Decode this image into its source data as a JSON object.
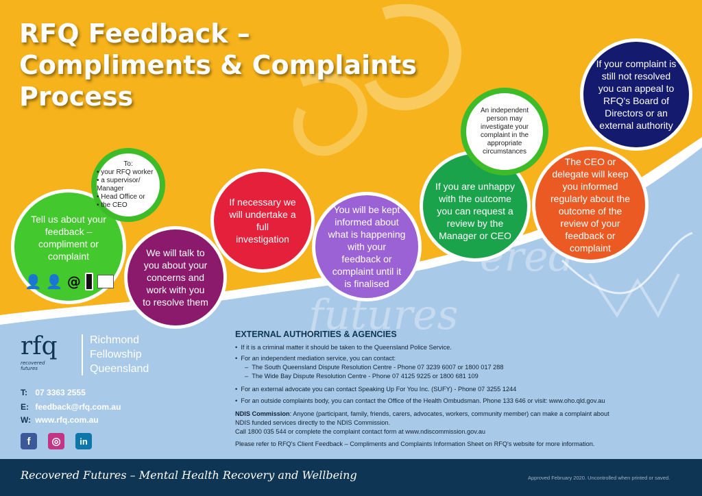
{
  "title": {
    "line1": "RFQ Feedback –",
    "line2": "Compliments & Complaints",
    "line3": "Process"
  },
  "steps": {
    "tell": "Tell us about your feedback – compliment or complaint",
    "to_heading": "To:",
    "to_items": [
      "your RFQ worker",
      "a supervisor/ Manager",
      "Head Office or",
      "the CEO"
    ],
    "talk": "We will talk to you about your concerns and work with you to resolve them",
    "investigate": "If necessary we will undertake a full investigation",
    "informed": "You will be kept informed about what is happening with your feedback or complaint until it is finalised",
    "review": "If you are unhappy with the outcome you can request a review by the Manager or CEO",
    "independent": "An independent person may investigate your complaint in the appropriate circumstances",
    "ceo": "The CEO or delegate will keep you informed regularly about the outcome of the review of your feedback or complaint",
    "appeal": "If your complaint is still not resolved you can appeal to RFQ's Board of Directors or an external authority"
  },
  "watermark": {
    "line1": "ered",
    "line2": "futures"
  },
  "org": {
    "logo_text": "rfq",
    "logo_tagline": "recovered futures",
    "name_line1": "Richmond",
    "name_line2": "Fellowship",
    "name_line3": "Queensland"
  },
  "contact": {
    "phone_label": "T:",
    "phone": "07 3363 2555",
    "email_label": "E:",
    "email": "feedback@rfq.com.au",
    "web_label": "W:",
    "web": "www.rfq.com.au"
  },
  "social": {
    "facebook": "f",
    "instagram": "◎",
    "linkedin": "in"
  },
  "external": {
    "heading": "EXTERNAL AUTHORITIES & AGENCIES",
    "b1": "If it is a criminal matter it should be taken to the Queensland Police Service.",
    "b2": "For an independent mediation service, you can contact:",
    "b2a": "The South Queensland Dispute Resolution Centre - Phone 07 3239 6007 or 1800 017 288",
    "b2b": "The Wide Bay Dispute Resolution Centre - Phone 07 4125 9225 or 1800 681 109",
    "b3": "For an external advocate you can contact Speaking Up For You Inc. (SUFY) - Phone 07 3255 1244",
    "b4": "For an outside complaints body, you can contact the Office of the Health Ombudsman. Phone 133 646 or visit: www.oho.qld.gov.au",
    "ndis_label": "NDIS Commission",
    "ndis_text1": ": Anyone (participant, family, friends, carers, advocates, workers, community member) can make a complaint about",
    "ndis_text2": "NDIS funded services directly to the NDIS Commission.",
    "ndis_text3": "Call 1800 035 544 or complete the complaint contact form at www.ndiscommission.gov.au",
    "refer": "Please refer to RFQ's Client Feedback – Compliments and Complaints Information Sheet on RFQ's website for more information."
  },
  "footer": {
    "tagline": "Recovered Futures – Mental Health Recovery and Wellbeing",
    "approved": "Approved February 2020.  Uncontrolled when printed or saved."
  },
  "colors": {
    "yellow": "#f6b31b",
    "blue": "#a9c9e8",
    "navy": "#0e3553",
    "green": "#3dbb29",
    "purple_dark": "#8b1a6d",
    "red": "#e4203a",
    "purple": "#9b62d6",
    "green_dark": "#1aa34a",
    "orange": "#ec5a24",
    "deep_blue": "#141a6e"
  }
}
